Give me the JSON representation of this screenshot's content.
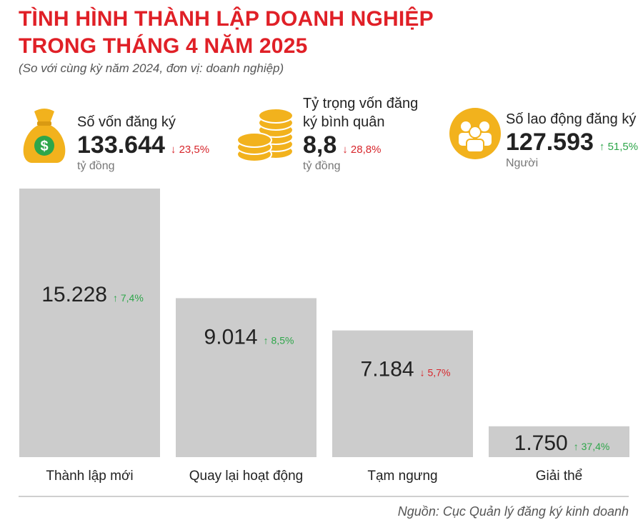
{
  "header": {
    "title_line1": "TÌNH HÌNH THÀNH LẬP DOANH NGHIỆP",
    "title_line2": "TRONG THÁNG 4 NĂM 2025",
    "subtitle": "(So với cùng kỳ năm 2024, đơn vị: doanh nghiệp)"
  },
  "stats": [
    {
      "label": "Số vốn đăng ký",
      "value": "133.644",
      "change": "↓ 23,5%",
      "unit": "tỷ đồng",
      "icon": "money-bag-icon"
    },
    {
      "label_line1": "Tỷ trọng vốn đăng",
      "label_line2": "ký bình quân",
      "value": "8,8",
      "change": "↓ 28,8%",
      "unit": "tỷ đồng",
      "icon": "coins-icon"
    },
    {
      "label": "Số lao động đăng ký",
      "value": "127.593",
      "change": "↑ 51,5%",
      "unit": "Người",
      "icon": "people-icon"
    }
  ],
  "colors": {
    "accent": "#e02027",
    "bar": "#cccccc",
    "up": "#2ea64a",
    "down": "#d7262c",
    "gold": "#f2b21d"
  },
  "chart_data": {
    "type": "bar",
    "categories": [
      "Thành lập mới",
      "Quay lại hoạt động",
      "Tạm ngưng",
      "Giải thể"
    ],
    "values": [
      15228,
      9014,
      7184,
      1750
    ],
    "value_labels": [
      "15.228",
      "9.014",
      "7.184",
      "1.750"
    ],
    "changes": [
      "↑ 7,4%",
      "↑ 8,5%",
      "↓ 5,7%",
      "↑ 37,4%"
    ],
    "directions": [
      "up",
      "up",
      "down",
      "up"
    ],
    "title": "",
    "xlabel": "",
    "ylabel": "",
    "ylim": [
      0,
      15228
    ],
    "grid": false
  },
  "source": "Nguồn: Cục Quản lý đăng ký kinh doanh"
}
